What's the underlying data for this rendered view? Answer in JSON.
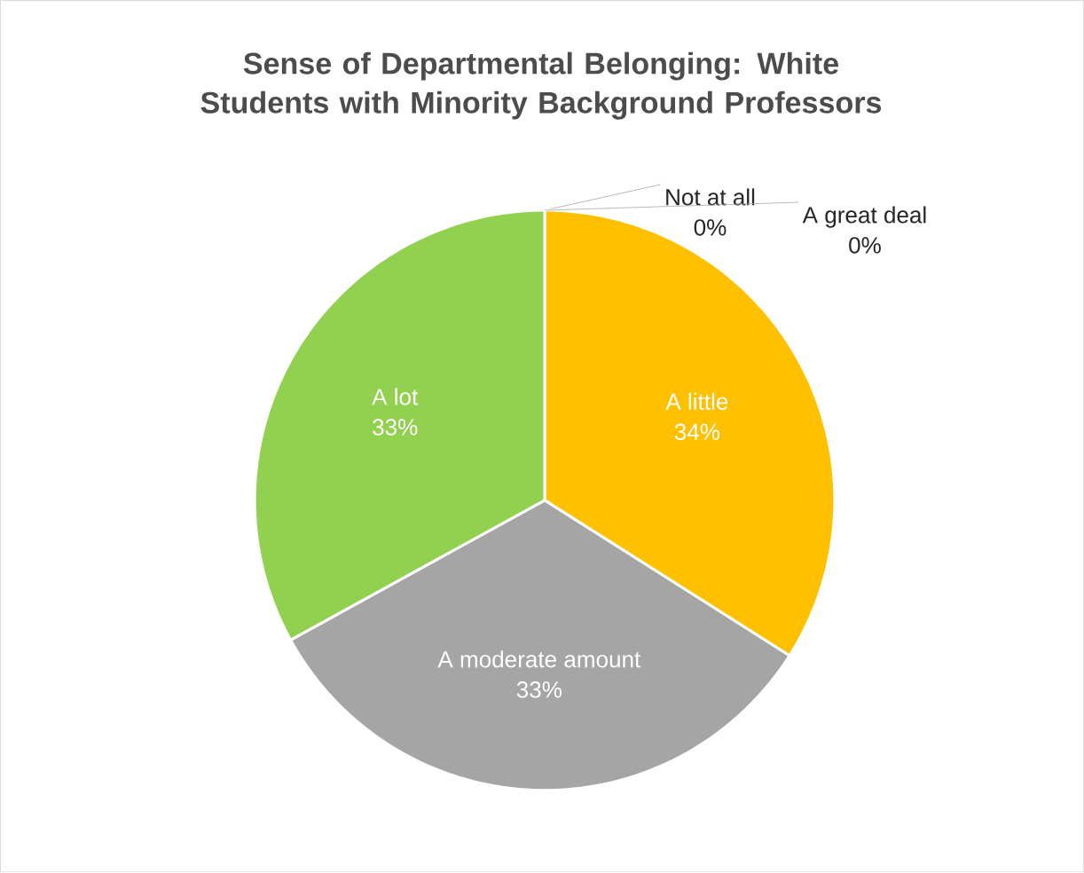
{
  "chart_data": {
    "type": "pie",
    "title": "Sense of Departmental Belonging: White Students with Minority Background Professors",
    "categories": [
      "Not at all",
      "A little",
      "A moderate amount",
      "A lot",
      "A great deal"
    ],
    "values": [
      0,
      34,
      33,
      33,
      0
    ],
    "value_labels": [
      "0%",
      "34%",
      "33%",
      "33%",
      "0%"
    ],
    "colors": [
      "#4472c4",
      "#ffc000",
      "#a5a5a5",
      "#92d050",
      "#5b9bd5"
    ]
  }
}
